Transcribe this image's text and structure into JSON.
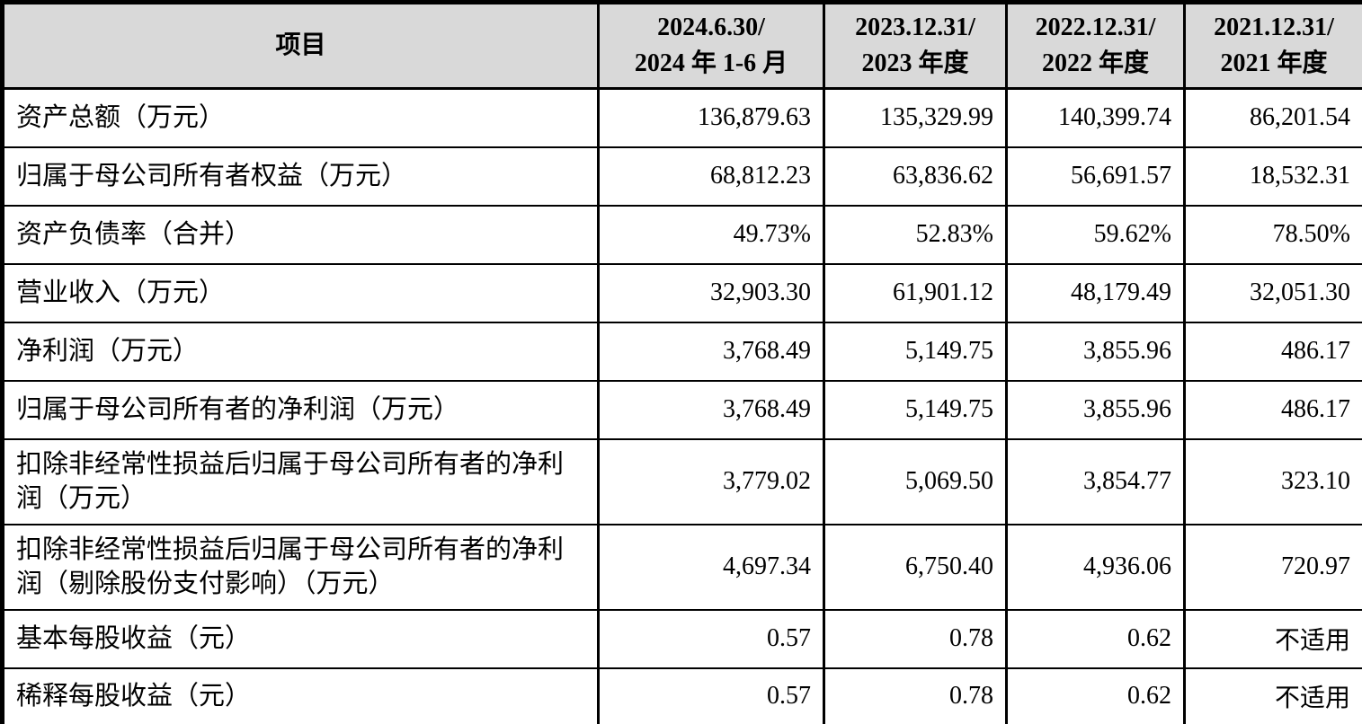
{
  "table": {
    "header": {
      "item_label": "项目",
      "periods": [
        {
          "line1": "2024.6.30/",
          "line2": "2024 年 1-6 月"
        },
        {
          "line1": "2023.12.31/",
          "line2": "2023 年度"
        },
        {
          "line1": "2022.12.31/",
          "line2": "2022 年度"
        },
        {
          "line1": "2021.12.31/",
          "line2": "2021 年度"
        }
      ]
    },
    "rows": [
      {
        "label": "资产总额（万元）",
        "two_line": false,
        "values": [
          "136,879.63",
          "135,329.99",
          "140,399.74",
          "86,201.54"
        ]
      },
      {
        "label": "归属于母公司所有者权益（万元）",
        "two_line": false,
        "values": [
          "68,812.23",
          "63,836.62",
          "56,691.57",
          "18,532.31"
        ]
      },
      {
        "label": "资产负债率（合并）",
        "two_line": false,
        "values": [
          "49.73%",
          "52.83%",
          "59.62%",
          "78.50%"
        ]
      },
      {
        "label": "营业收入（万元）",
        "two_line": false,
        "values": [
          "32,903.30",
          "61,901.12",
          "48,179.49",
          "32,051.30"
        ]
      },
      {
        "label": "净利润（万元）",
        "two_line": false,
        "values": [
          "3,768.49",
          "5,149.75",
          "3,855.96",
          "486.17"
        ]
      },
      {
        "label": "归属于母公司所有者的净利润（万元）",
        "two_line": false,
        "values": [
          "3,768.49",
          "5,149.75",
          "3,855.96",
          "486.17"
        ]
      },
      {
        "label": "扣除非经常性损益后归属于母公司所有者的净利润（万元）",
        "two_line": true,
        "values": [
          "3,779.02",
          "5,069.50",
          "3,854.77",
          "323.10"
        ]
      },
      {
        "label": "扣除非经常性损益后归属于母公司所有者的净利润（剔除股份支付影响）（万元）",
        "two_line": true,
        "values": [
          "4,697.34",
          "6,750.40",
          "4,936.06",
          "720.97"
        ]
      },
      {
        "label": "基本每股收益（元）",
        "two_line": false,
        "values": [
          "0.57",
          "0.78",
          "0.62",
          "不适用"
        ]
      },
      {
        "label": "稀释每股收益（元）",
        "two_line": false,
        "values": [
          "0.57",
          "0.78",
          "0.62",
          "不适用"
        ]
      }
    ],
    "colors": {
      "header_bg": "#d9d9d9",
      "body_bg": "#ffffff",
      "border": "#000000",
      "text": "#000000"
    }
  }
}
